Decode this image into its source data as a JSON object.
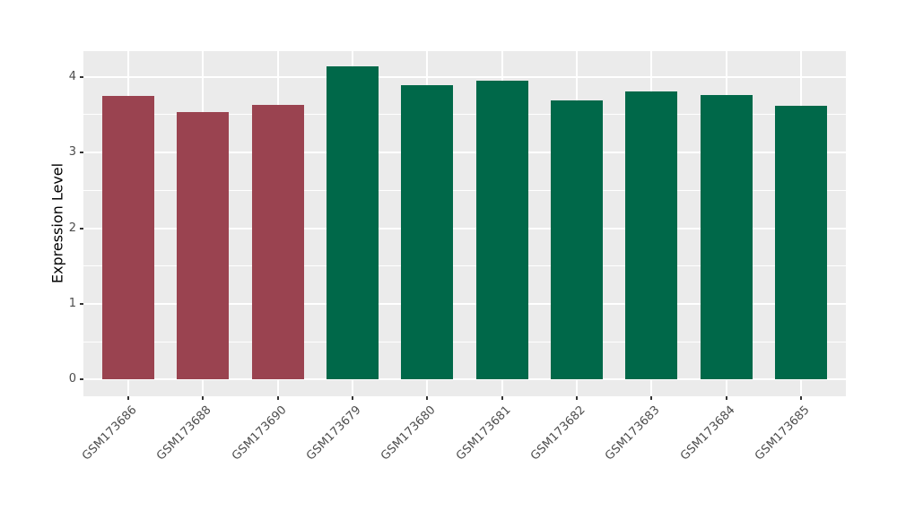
{
  "chart_data": {
    "type": "bar",
    "title": "",
    "xlabel": "",
    "ylabel": "Expression Level",
    "categories": [
      "GSM173686",
      "GSM173688",
      "GSM173690",
      "GSM173679",
      "GSM173680",
      "GSM173681",
      "GSM173682",
      "GSM173683",
      "GSM173684",
      "GSM173685"
    ],
    "values": [
      3.75,
      3.53,
      3.63,
      4.14,
      3.89,
      3.95,
      3.69,
      3.81,
      3.76,
      3.62
    ],
    "bar_colors": [
      "#9a4350",
      "#9a4350",
      "#9a4350",
      "#006849",
      "#006849",
      "#006849",
      "#006849",
      "#006849",
      "#006849",
      "#006849"
    ],
    "color_groups": [
      {
        "color": "#9a4350",
        "categories": [
          "GSM173686",
          "GSM173688",
          "GSM173690"
        ]
      },
      {
        "color": "#006849",
        "categories": [
          "GSM173679",
          "GSM173680",
          "GSM173681",
          "GSM173682",
          "GSM173683",
          "GSM173684",
          "GSM173685"
        ]
      }
    ],
    "yticks": [
      0,
      1,
      2,
      3,
      4
    ],
    "yticks_minor": [
      0.5,
      1.5,
      2.5,
      3.5
    ],
    "y_range": [
      -0.22,
      4.34
    ],
    "bar_width_ratio": 0.7,
    "x_label_angle": 45,
    "legend": "none",
    "grid": "major-and-minor",
    "colors": {
      "page_bg": "#ffffff",
      "panel_bg": "#ebebeb",
      "grid": "#ffffff",
      "axis_text": "#4d4d4d",
      "axis_title": "#000000",
      "tick": "#333333"
    }
  }
}
